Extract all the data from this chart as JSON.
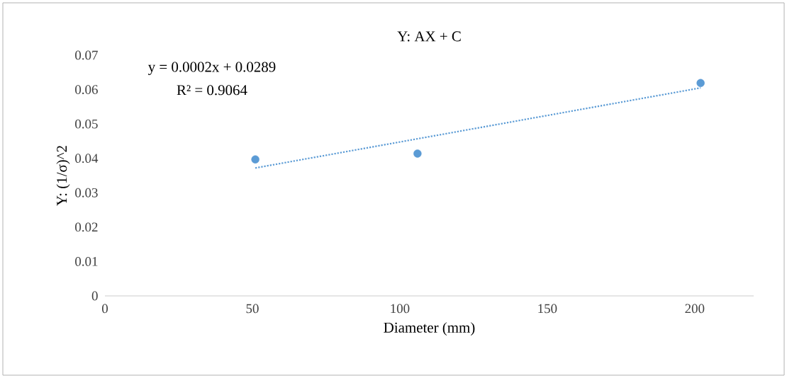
{
  "chart_data": {
    "type": "scatter",
    "title": "Y: AX + C",
    "xlabel": "Diameter (mm)",
    "ylabel": "Y: (1/σ)^2",
    "xlim": [
      0,
      220
    ],
    "xticks": [
      0,
      50,
      100,
      150,
      200
    ],
    "ylim": [
      0,
      0.07
    ],
    "yticks": [
      0,
      0.01,
      0.02,
      0.03,
      0.04,
      0.05,
      0.06,
      0.07
    ],
    "grid": false,
    "marker": "circle",
    "series": [
      {
        "x": [
          51,
          106,
          202
        ],
        "values": [
          0.0397,
          0.0414,
          0.0619
        ],
        "color": "#5b9bd5"
      },
      {
        "type": "line",
        "x": [
          51,
          202
        ],
        "values": [
          0.0372,
          0.0605
        ],
        "color": "#5b9bd5",
        "line_style": "dotted",
        "marker": "none"
      }
    ],
    "annotations": [
      "y = 0.0002x + 0.0289",
      "R² = 0.9064"
    ]
  }
}
